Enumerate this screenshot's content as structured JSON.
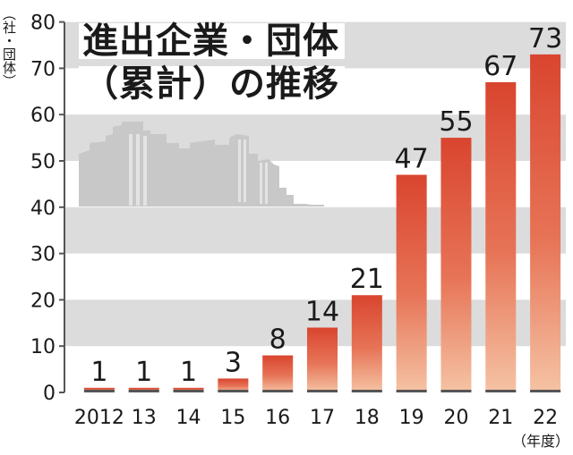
{
  "chart_data": {
    "type": "bar",
    "title_line1": "進出企業・団体",
    "title_line2": "（累計）の推移",
    "ylabel": "（社・団体）",
    "xunit": "（年度）",
    "categories": [
      "2012",
      "13",
      "14",
      "15",
      "16",
      "17",
      "18",
      "19",
      "20",
      "21",
      "22"
    ],
    "values": [
      1,
      1,
      1,
      3,
      8,
      14,
      21,
      47,
      55,
      67,
      73
    ],
    "value_labels": [
      "1",
      "1",
      "1",
      "3",
      "8",
      "14",
      "21",
      "47",
      "55",
      "67",
      "73"
    ],
    "y_ticks": [
      "0",
      "10",
      "20",
      "30",
      "40",
      "50",
      "60",
      "70",
      "80"
    ],
    "ylim": [
      0,
      80
    ],
    "grid": "alternating gray bands",
    "colors": {
      "bar_top": "#d9452f",
      "bar_bottom": "#f5c3a4",
      "band": "#dcdcdc",
      "skyline": "#c8c8c8",
      "axis": "#555555",
      "text": "#1a1a1a"
    }
  }
}
